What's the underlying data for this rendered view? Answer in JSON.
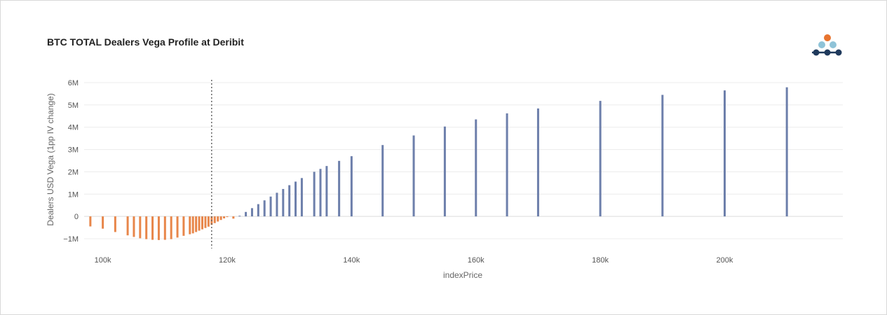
{
  "chart_data": {
    "type": "bar",
    "title": "BTC TOTAL Dealers Vega Profile at Deribit",
    "xlabel": "indexPrice",
    "ylabel": "Dealers USD Vega (1pp IV change)",
    "xlim": [
      97000,
      219000
    ],
    "ylim": [
      -1000000,
      6000000
    ],
    "x_ticks": [
      100000,
      120000,
      140000,
      160000,
      180000,
      200000
    ],
    "x_tick_labels": [
      "100k",
      "120k",
      "140k",
      "160k",
      "180k",
      "200k"
    ],
    "y_ticks": [
      -1000000,
      0,
      1000000,
      2000000,
      3000000,
      4000000,
      5000000,
      6000000
    ],
    "y_tick_labels": [
      "−1M",
      "0",
      "1M",
      "2M",
      "3M",
      "4M",
      "5M",
      "6M"
    ],
    "grid": true,
    "reference_line": {
      "x": 117500,
      "style": "dotted"
    },
    "negative_color": "#e8864a",
    "positive_color": "#6d7fab",
    "series": [
      {
        "x": [
          98000,
          100000,
          102000,
          104000,
          105000,
          106000,
          107000,
          108000,
          109000,
          110000,
          111000,
          112000,
          113000,
          114000,
          114500,
          115000,
          115500,
          116000,
          116500,
          117000,
          117500,
          118000,
          118500,
          119000,
          119500,
          120000,
          121000,
          122000,
          123000,
          124000,
          125000,
          126000,
          127000,
          128000,
          129000,
          130000,
          131000,
          132000,
          134000,
          135000,
          136000,
          138000,
          140000,
          145000,
          150000,
          155000,
          160000,
          165000,
          170000,
          180000,
          190000,
          200000,
          210000
        ],
        "values": [
          -450000,
          -550000,
          -700000,
          -850000,
          -920000,
          -980000,
          -1020000,
          -1050000,
          -1060000,
          -1050000,
          -1020000,
          -950000,
          -870000,
          -800000,
          -760000,
          -700000,
          -640000,
          -580000,
          -520000,
          -460000,
          -380000,
          -300000,
          -230000,
          -160000,
          -90000,
          -20000,
          -100000,
          30000,
          200000,
          370000,
          550000,
          720000,
          890000,
          1060000,
          1230000,
          1400000,
          1560000,
          1720000,
          2000000,
          2130000,
          2260000,
          2490000,
          2700000,
          3200000,
          3630000,
          4030000,
          4350000,
          4620000,
          4840000,
          5180000,
          5450000,
          5650000,
          5790000
        ]
      }
    ]
  }
}
